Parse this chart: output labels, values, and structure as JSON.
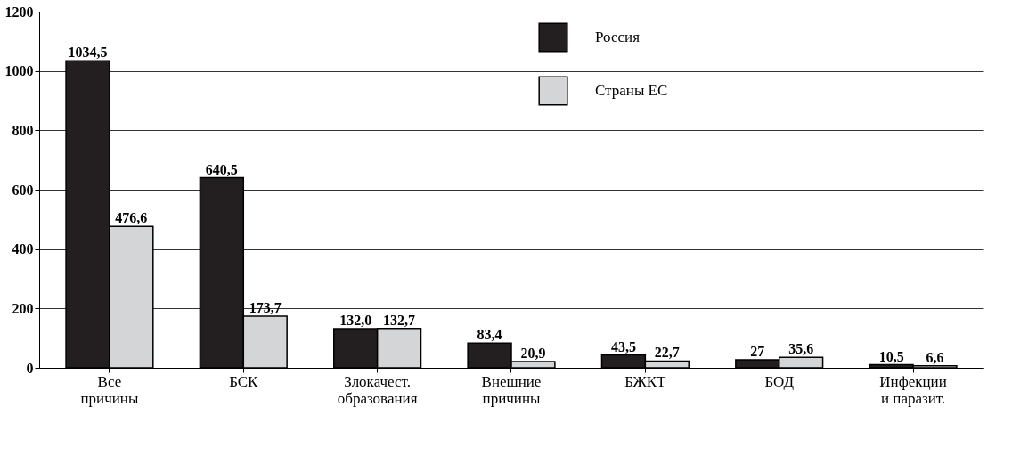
{
  "chart_data": {
    "type": "bar",
    "categories": [
      "Все\nпричины",
      "БСК",
      "Злокачест.\nобразования",
      "Внешние\nпричины",
      "БЖКТ",
      "БОД",
      "Инфекции\nи паразит."
    ],
    "series": [
      {
        "name": "Россия",
        "color": "#231f20",
        "values": [
          1034.5,
          640.5,
          132.0,
          83.4,
          43.5,
          27,
          10.5
        ],
        "value_labels": [
          "1034,5",
          "640,5",
          "132,0",
          "83,4",
          "43,5",
          "27",
          "10,5"
        ]
      },
      {
        "name": "Страны ЕС",
        "color": "#d4d5d7",
        "values": [
          476.6,
          173.7,
          132.7,
          20.9,
          22.7,
          35.6,
          6.6
        ],
        "value_labels": [
          "476,6",
          "173,7",
          "132,7",
          "20,9",
          "22,7",
          "35,6",
          "6,6"
        ]
      }
    ],
    "ylim": [
      0,
      1200
    ],
    "yticks": [
      0,
      200,
      400,
      600,
      800,
      1000,
      1200
    ],
    "grid": "y",
    "legend": "top right"
  }
}
